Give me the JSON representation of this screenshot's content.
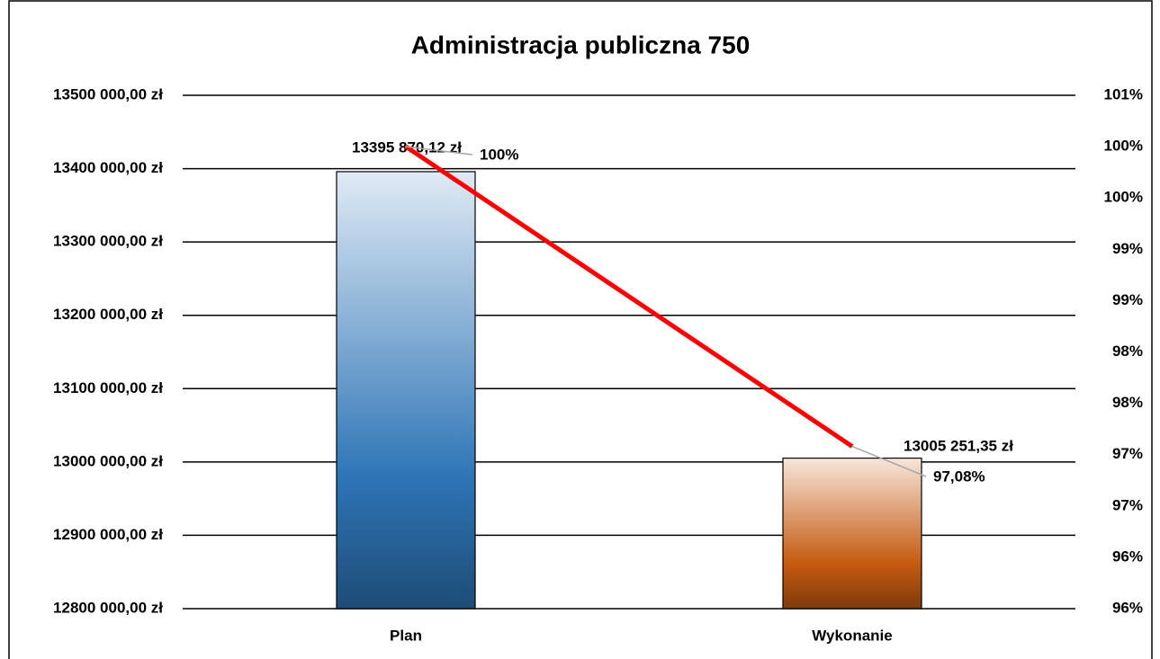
{
  "chart_data": {
    "type": "bar",
    "title": "Administracja publiczna 750",
    "categories": [
      "Plan",
      "Wykonanie"
    ],
    "series": [
      {
        "type": "bar",
        "colors": [
          "#2e75b6",
          "#c55a11"
        ],
        "values": [
          13395870.12,
          13005251.35
        ],
        "value_labels": [
          "13395 870,12 zł",
          "13005 251,35 zł"
        ]
      },
      {
        "type": "line",
        "axis": "y2",
        "color": "#ff0000",
        "values": [
          100,
          97.08
        ],
        "value_labels": [
          "100%",
          "97,08%"
        ]
      }
    ],
    "ylim": [
      12800000,
      13500000
    ],
    "yticks": [
      {
        "value": 12800000,
        "label": "12800 000,00 zł"
      },
      {
        "value": 12900000,
        "label": "12900 000,00 zł"
      },
      {
        "value": 13000000,
        "label": "13000 000,00 zł"
      },
      {
        "value": 13100000,
        "label": "13100 000,00 zł"
      },
      {
        "value": 13200000,
        "label": "13200 000,00 zł"
      },
      {
        "value": 13300000,
        "label": "13300 000,00 zł"
      },
      {
        "value": 13400000,
        "label": "13400 000,00 zł"
      },
      {
        "value": 13500000,
        "label": "13500 000,00 zł"
      }
    ],
    "y2lim": [
      95.5,
      100.5
    ],
    "y2ticks": [
      {
        "value": 95.5,
        "label": "96%"
      },
      {
        "value": 96,
        "label": "96%"
      },
      {
        "value": 96.5,
        "label": "97%"
      },
      {
        "value": 97,
        "label": "97%"
      },
      {
        "value": 97.5,
        "label": "98%"
      },
      {
        "value": 98,
        "label": "98%"
      },
      {
        "value": 98.5,
        "label": "99%"
      },
      {
        "value": 99,
        "label": "99%"
      },
      {
        "value": 99.5,
        "label": "100%"
      },
      {
        "value": 100,
        "label": "100%"
      },
      {
        "value": 100.5,
        "label": "101%"
      }
    ],
    "grid": true
  }
}
